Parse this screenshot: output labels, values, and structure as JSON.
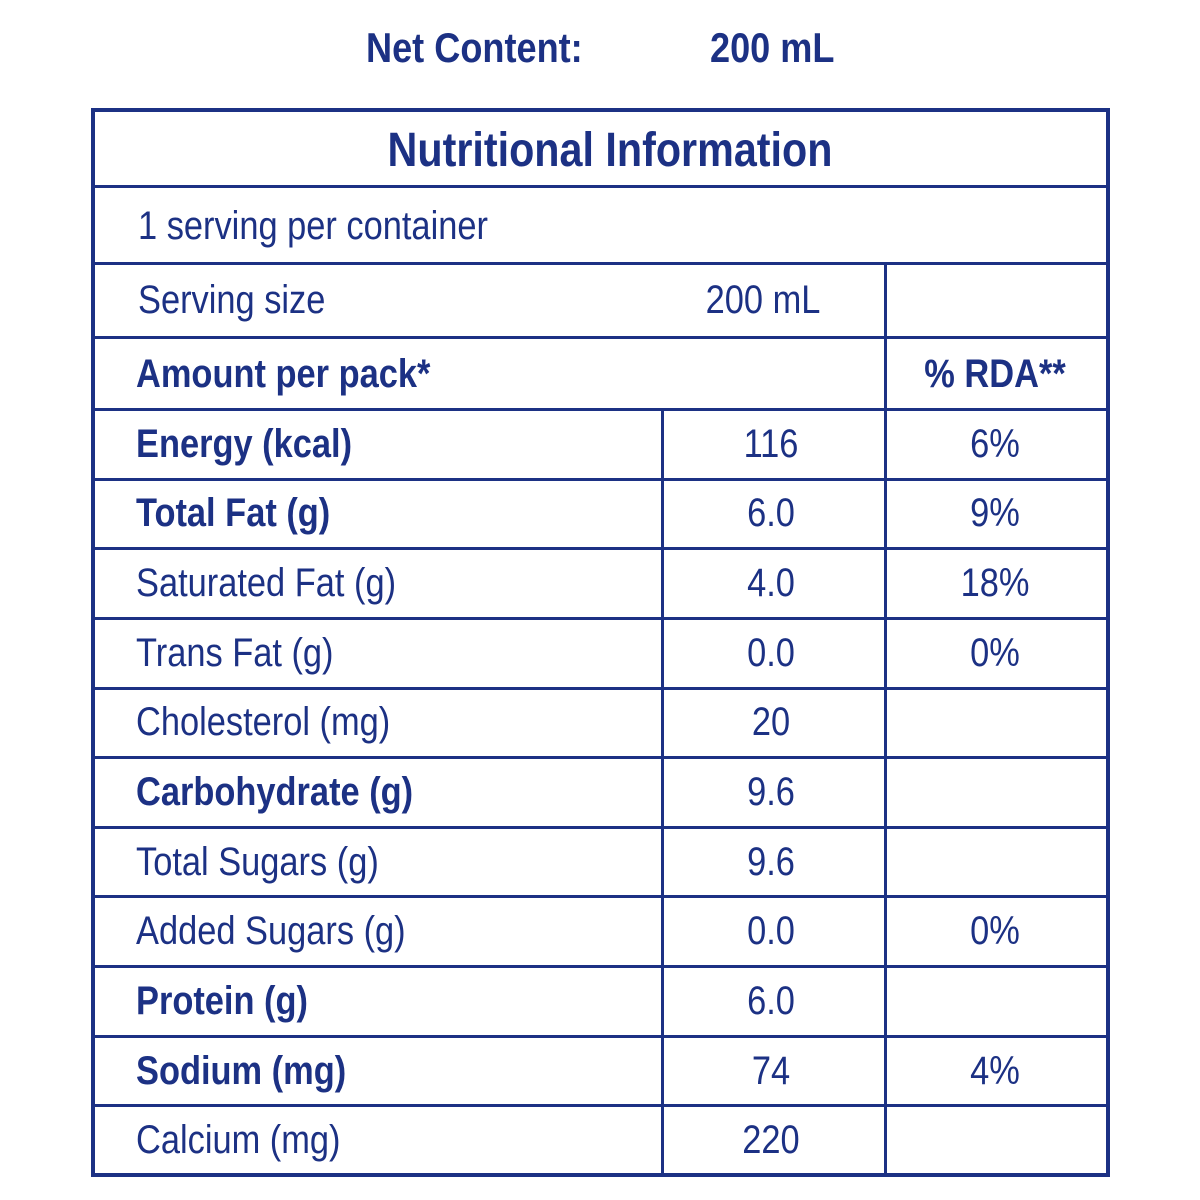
{
  "header": {
    "label": "Net Content:",
    "value": "200 mL"
  },
  "table": {
    "title": "Nutritional Information",
    "servings": "1 serving per container",
    "serving_size": {
      "label": "Serving size",
      "value": "200 mL"
    },
    "columns": {
      "amount": "Amount per pack*",
      "rda": "% RDA**"
    },
    "rows": [
      {
        "label": "Energy (kcal)",
        "amount": "116",
        "rda": "6%",
        "bold": true
      },
      {
        "label": "Total Fat (g)",
        "amount": "6.0",
        "rda": "9%",
        "bold": true
      },
      {
        "label": "Saturated Fat (g)",
        "amount": "4.0",
        "rda": "18%",
        "bold": false
      },
      {
        "label": "Trans Fat (g)",
        "amount": "0.0",
        "rda": "0%",
        "bold": false
      },
      {
        "label": "Cholesterol (mg)",
        "amount": "20",
        "bold": false
      },
      {
        "label": "Carbohydrate (g)",
        "amount": "9.6",
        "bold": true
      },
      {
        "label": "Total Sugars (g)",
        "amount": "9.6",
        "bold": false
      },
      {
        "label": "Added Sugars (g)",
        "amount": "0.0",
        "rda": "0%",
        "bold": false
      },
      {
        "label": "Protein (g)",
        "amount": "6.0",
        "bold": true
      },
      {
        "label": "Sodium (mg)",
        "amount": "74",
        "rda": "4%",
        "bold": true
      },
      {
        "label": "Calcium (mg)",
        "amount": "220",
        "bold": false
      }
    ]
  }
}
